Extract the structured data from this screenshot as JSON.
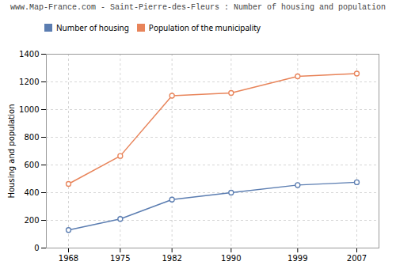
{
  "chart_data": {
    "type": "line",
    "title": "www.Map-France.com - Saint-Pierre-des-Fleurs : Number of housing and population",
    "ylabel": "Housing and population",
    "x": [
      1968,
      1975,
      1982,
      1990,
      1999,
      2007
    ],
    "series": [
      {
        "name": "Number of housing",
        "color": "#5b7db1",
        "values": [
          130,
          210,
          350,
          400,
          455,
          475
        ]
      },
      {
        "name": "Population of the municipality",
        "color": "#e8845a",
        "values": [
          463,
          665,
          1100,
          1120,
          1240,
          1260
        ]
      }
    ],
    "xlim": [
      1965,
      2010
    ],
    "xticks": [
      1968,
      1975,
      1982,
      1990,
      1999,
      2007
    ],
    "ylim": [
      0,
      1400
    ],
    "yticks": [
      0,
      200,
      400,
      600,
      800,
      1000,
      1200,
      1400
    ],
    "grid": true,
    "legend": "upper left",
    "marker": "circle"
  }
}
